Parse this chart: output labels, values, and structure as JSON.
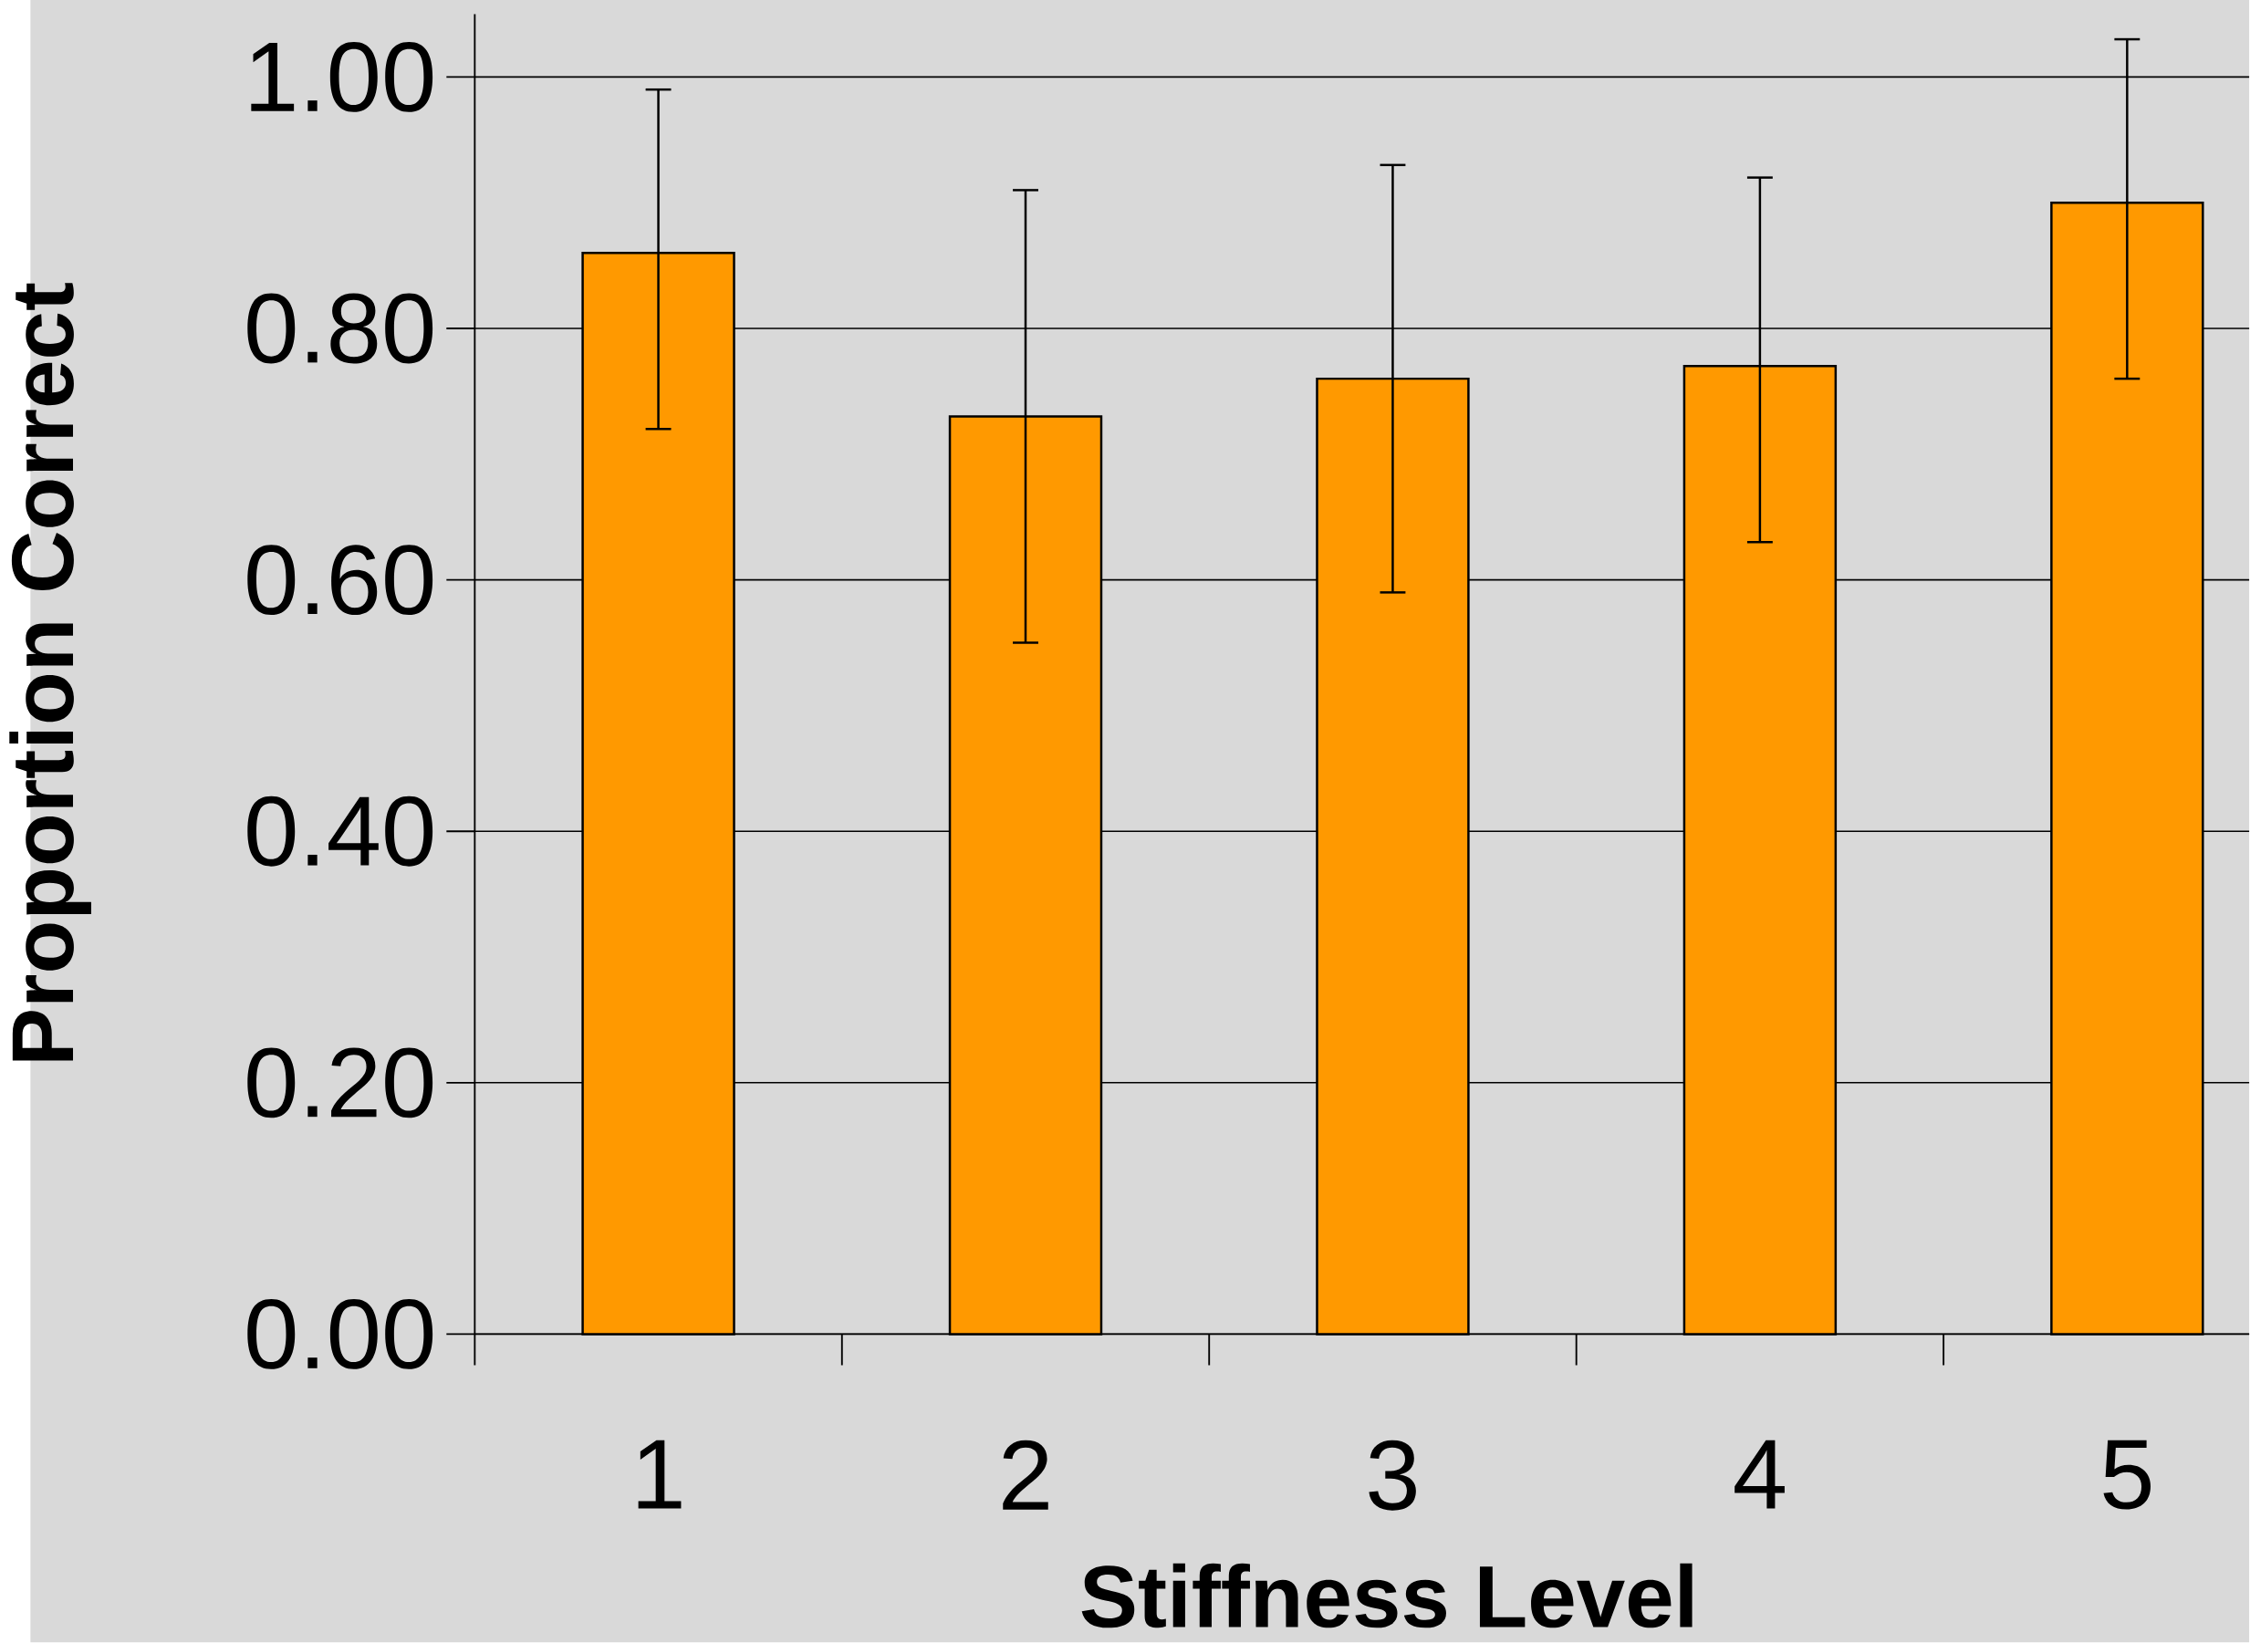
{
  "chart_data": {
    "type": "bar",
    "xlabel": "Stiffness Level",
    "ylabel": "Proportion Correct",
    "categories": [
      "1",
      "2",
      "3",
      "4",
      "5"
    ],
    "values": [
      0.86,
      0.73,
      0.76,
      0.77,
      0.9
    ],
    "errors": [
      [
        0.72,
        0.99
      ],
      [
        0.55,
        0.91
      ],
      [
        0.59,
        0.93
      ],
      [
        0.63,
        0.92
      ],
      [
        0.76,
        1.03
      ]
    ],
    "color": "#ff9900",
    "ylim": [
      0,
      1.05
    ],
    "yticks": [
      {
        "value": 0,
        "label": "0.00"
      },
      {
        "value": 0.2,
        "label": "0.20"
      },
      {
        "value": 0.4,
        "label": "0.40"
      },
      {
        "value": 0.6,
        "label": "0.60"
      },
      {
        "value": 0.8,
        "label": "0.80"
      },
      {
        "value": 1.0,
        "label": "1.00"
      }
    ],
    "grid": "y"
  }
}
